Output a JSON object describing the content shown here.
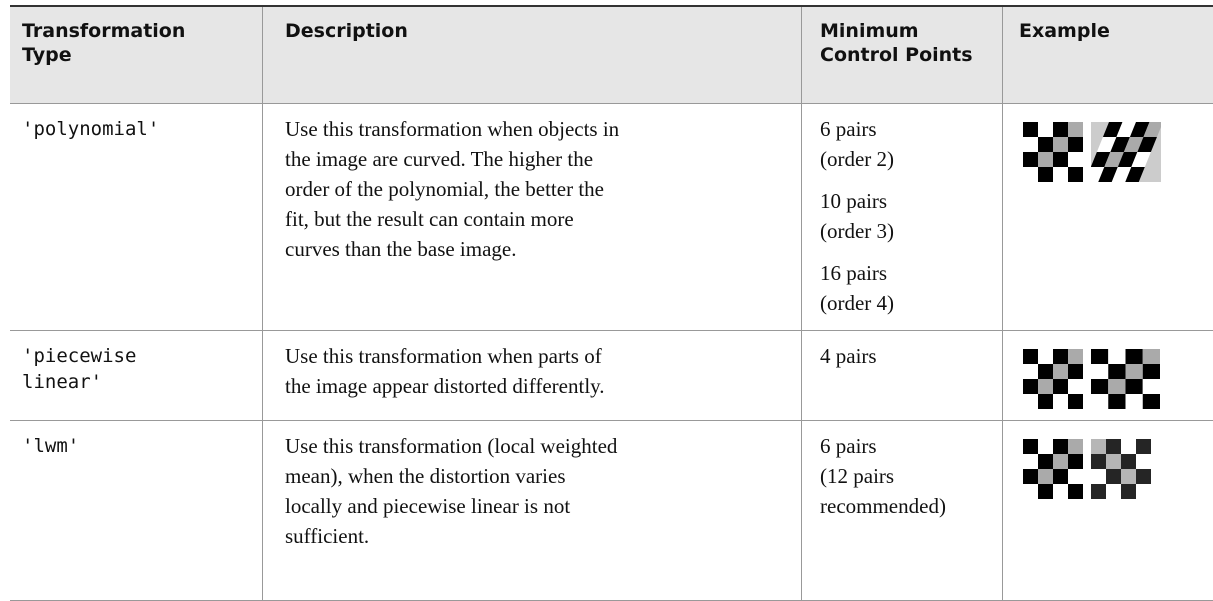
{
  "table": {
    "header": [
      [
        "Transformation",
        "Type"
      ],
      [
        "Description"
      ],
      [
        "Minimum",
        "Control Points"
      ],
      [
        "Example"
      ]
    ],
    "rows": [
      {
        "type": [
          "'polynomial'"
        ],
        "description": [
          "Use this transformation when objects in",
          "the image are curved. The higher the",
          "order of the polynomial, the better the",
          "fit, but the result can contain more",
          "curves than the base image."
        ],
        "control_points": [
          [
            "6 pairs",
            "(order 2)"
          ],
          [
            "10 pairs",
            "(order 3)"
          ],
          [
            "16 pairs",
            "(order 4)"
          ]
        ]
      },
      {
        "type": [
          "'piecewise",
          "linear'"
        ],
        "description": [
          "Use this transformation when parts of",
          "the image appear distorted differently."
        ],
        "control_points": [
          [
            "4 pairs"
          ]
        ]
      },
      {
        "type": [
          "'lwm'"
        ],
        "description": [
          "Use this transformation (local weighted",
          "mean), when the distortion varies",
          "locally and piecewise linear is not",
          "sufficient."
        ],
        "control_points": [
          [
            "6 pairs",
            "(12 pairs",
            "recommended)"
          ]
        ]
      }
    ]
  }
}
